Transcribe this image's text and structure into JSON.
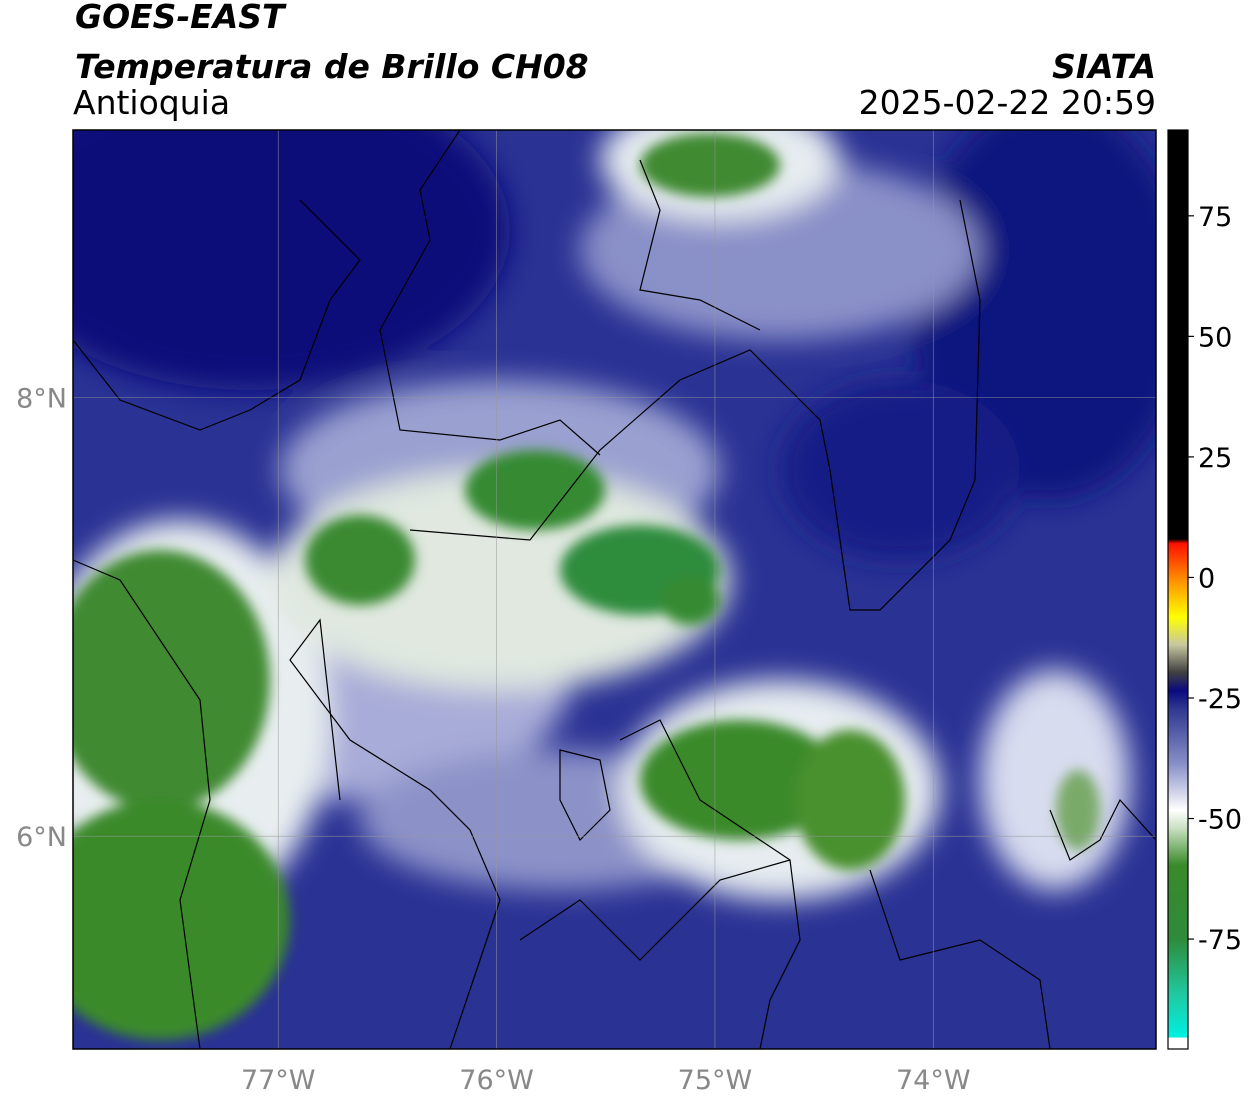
{
  "header": {
    "title": "GOES-EAST",
    "subtitle": "Temperatura de Brillo CH08",
    "region": "Antioquia",
    "source": "SIATA",
    "datetime": "2025-02-22 20:59"
  },
  "map": {
    "xlim": [
      -77.94,
      -72.98
    ],
    "ylim": [
      5.03,
      9.22
    ],
    "xticks": [
      {
        "value": -77,
        "label": "77°W"
      },
      {
        "value": -76,
        "label": "76°W"
      },
      {
        "value": -75,
        "label": "75°W"
      },
      {
        "value": -74,
        "label": "74°W"
      }
    ],
    "yticks": [
      {
        "value": 6,
        "label": "6°N"
      },
      {
        "value": 8,
        "label": "8°N"
      }
    ],
    "grid": true
  },
  "colorbar": {
    "lim": [
      -97.8,
      92.8
    ],
    "ticks": [
      -75,
      -50,
      -25,
      0,
      25,
      50,
      75
    ]
  }
}
